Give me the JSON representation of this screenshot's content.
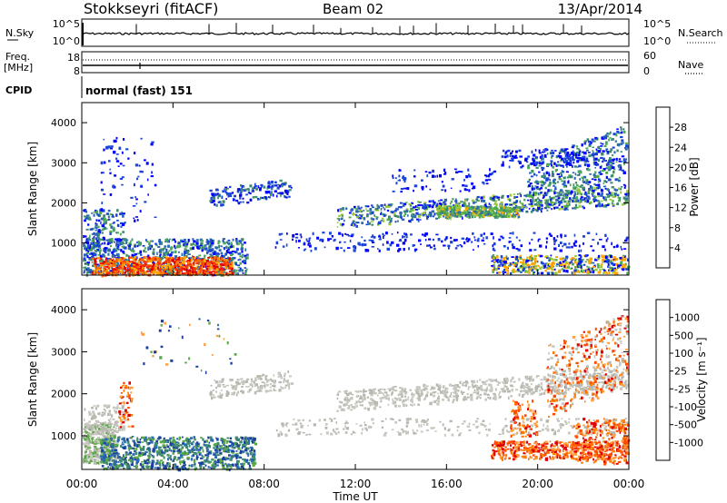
{
  "header": {
    "station": "Stokkseyri (fitACF)",
    "beam": "Beam 02",
    "date": "13/Apr/2014"
  },
  "status_panels": {
    "nsky_label": "N.Sky",
    "nsky_ticks": [
      "10^5",
      "10^0"
    ],
    "nsearch_label": "N.Search",
    "nsearch_ticks": [
      "10^5",
      "10^0"
    ],
    "freq_label": "Freq.",
    "freq_unit": "[MHz]",
    "freq_ticks": [
      "18",
      "8"
    ],
    "nave_label": "Nave",
    "nave_ticks": [
      "60",
      "0"
    ],
    "cpid_label": "CPID",
    "cpid_text": "normal (fast) 151"
  },
  "chart_data": [
    {
      "type": "heatmap",
      "name": "power",
      "ylabel": "Slant Range [km]",
      "ylim": [
        200,
        4500
      ],
      "yticks": [
        1000,
        2000,
        3000,
        4000
      ],
      "colorbar_label": "Power [dB]",
      "colorbar_ticks": [
        "28",
        "24",
        "20",
        "16",
        "12",
        "8",
        "4"
      ],
      "colorbar_colors": [
        "#0000ff",
        "#1a44d6",
        "#2a6ab0",
        "#3d8a6e",
        "#4caa50",
        "#9ac83a",
        "#ffa500",
        "#ff6d00",
        "#ff3000",
        "#e00000"
      ]
    },
    {
      "type": "heatmap",
      "name": "velocity",
      "ylabel": "Slant Range [km]",
      "ylim": [
        200,
        4500
      ],
      "yticks": [
        1000,
        2000,
        3000,
        4000
      ],
      "colorbar_label": "Velocity [m s⁻¹]",
      "colorbar_ticks": [
        "1000",
        "500",
        "100",
        "25",
        "-25",
        "-100",
        "-500",
        "-1000"
      ],
      "colorbar_colors": [
        "#1a3fa0",
        "#2a6ab0",
        "#3d8a6e",
        "#5aa845",
        "#9ad24a",
        "#c8c8c0",
        "#ffa040",
        "#ff7a00",
        "#ff4a00",
        "#e00000"
      ]
    }
  ],
  "xaxis": {
    "label": "Time UT",
    "ticks": [
      "00:00",
      "04:00",
      "08:00",
      "12:00",
      "16:00",
      "20:00",
      "00:00"
    ]
  }
}
